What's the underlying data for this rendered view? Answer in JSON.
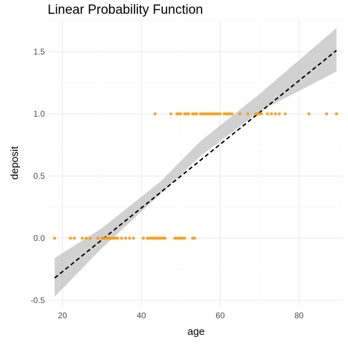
{
  "chart_data": {
    "type": "scatter",
    "title": "Linear Probability Function",
    "xlabel": "age",
    "ylabel": "deposit",
    "xlim": [
      16.4,
      91.2
    ],
    "ylim": [
      -0.55,
      1.76
    ],
    "x_ticks": [
      20,
      40,
      60,
      80
    ],
    "y_ticks": [
      -0.5,
      0.0,
      0.5,
      1.0,
      1.5
    ],
    "y_tick_labels": [
      "-0.5",
      "0.0",
      "0.5",
      "1.0",
      "1.5"
    ],
    "grid": true,
    "point_color": "#f39c12",
    "line_color": "#000000",
    "ribbon_color": "#bdbdbd",
    "series": [
      {
        "kind": "points",
        "x": [
          18,
          22,
          23,
          25,
          26,
          27,
          29,
          30,
          30.5,
          31,
          31.5,
          32,
          32.5,
          33,
          33.5,
          34,
          35,
          36,
          37,
          38,
          40.5,
          41.5,
          42,
          42.5,
          43,
          43.5,
          44,
          44.5,
          45,
          45.5,
          46,
          48.5,
          49,
          49.5,
          50,
          50.5,
          51,
          53,
          53.5,
          43.5,
          47.5,
          49,
          49.5,
          50,
          51,
          51.5,
          52,
          53,
          53.5,
          54,
          55,
          55.5,
          56,
          56.5,
          57,
          57.5,
          58,
          58.5,
          59,
          59.5,
          60,
          61,
          61.5,
          62,
          62.5,
          63,
          65,
          67,
          69,
          69.5,
          70,
          70.5,
          72,
          73,
          74,
          75,
          76.5,
          82.5,
          87,
          89.5
        ],
        "y": [
          0,
          0,
          0,
          0,
          0,
          0,
          0,
          0,
          0,
          0,
          0,
          0,
          0,
          0,
          0,
          0,
          0,
          0,
          0,
          0,
          0,
          0,
          0,
          0,
          0,
          0,
          0,
          0,
          0,
          0,
          0,
          0,
          0,
          0,
          0,
          0,
          0,
          0,
          0,
          1,
          1,
          1,
          1,
          1,
          1,
          1,
          1,
          1,
          1,
          1,
          1,
          1,
          1,
          1,
          1,
          1,
          1,
          1,
          1,
          1,
          1,
          1,
          1,
          1,
          1,
          1,
          1,
          1,
          1,
          1,
          1,
          1,
          1,
          1,
          1,
          1,
          1,
          1,
          1,
          1
        ]
      },
      {
        "kind": "fit-line",
        "style": "dashed",
        "x": [
          18,
          89.5
        ],
        "y": [
          -0.32,
          1.51
        ]
      },
      {
        "kind": "confidence-band",
        "x": [
          18,
          30,
          45,
          55,
          70,
          89.5
        ],
        "lower": [
          -0.47,
          -0.08,
          0.36,
          0.66,
          1.02,
          1.34
        ],
        "upper": [
          -0.16,
          0.08,
          0.46,
          0.78,
          1.16,
          1.69
        ]
      }
    ]
  }
}
